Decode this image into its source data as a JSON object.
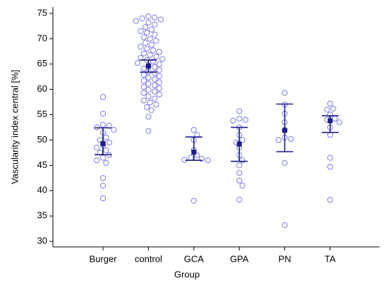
{
  "chart_data": {
    "type": "dotplot",
    "xlabel": "Group",
    "ylabel": "Vascularity index central [%]",
    "categories": [
      "Burger",
      "control",
      "GCA",
      "GPA",
      "PN",
      "TA"
    ],
    "points": [
      [
        58.5,
        55.2,
        53,
        52.8,
        52.5,
        52,
        51.5,
        50.5,
        50,
        49.5,
        49,
        48.5,
        48,
        47.5,
        47,
        46.5,
        46,
        45.5,
        42.5,
        41,
        38.5
      ],
      [
        74.4,
        74.2,
        74,
        73.8,
        73.5,
        73.2,
        72.8,
        72.3,
        71.8,
        71.5,
        71.2,
        70.8,
        70.3,
        70,
        69.6,
        69.2,
        68.8,
        68.4,
        68,
        67.7,
        67.4,
        67.1,
        66.8,
        66.5,
        66.2,
        66,
        65.8,
        65.5,
        65.2,
        65,
        64.7,
        64.4,
        64.1,
        63.8,
        63.5,
        63.2,
        62.9,
        62.6,
        62.3,
        62,
        61.7,
        61.4,
        61.1,
        60.8,
        60.5,
        60.2,
        59.9,
        59.6,
        59.3,
        59,
        58.6,
        58.2,
        57.8,
        57.4,
        57,
        56.5,
        55.9,
        54.6,
        51.8
      ],
      [
        52,
        51,
        50,
        48,
        47,
        46.5,
        46.3,
        46.1,
        46,
        38
      ],
      [
        55.7,
        54.2,
        54,
        53.8,
        52.5,
        51,
        50,
        49.5,
        48.5,
        47,
        46,
        45,
        43.5,
        42,
        41,
        38.2
      ],
      [
        59.3,
        57,
        55.2,
        53.5,
        52,
        50.5,
        50.2,
        50,
        45.5,
        33.2
      ],
      [
        57.2,
        56.2,
        56,
        55,
        54.2,
        54,
        53.5,
        52.5,
        51,
        46.5,
        44.7,
        38.2
      ]
    ],
    "means": [
      49.3,
      64.6,
      47.6,
      49.2,
      51.9,
      53.8
    ],
    "ci_low": [
      47.1,
      63.4,
      46,
      45.8,
      47.7,
      51.5
    ],
    "ci_high": [
      52.4,
      65.8,
      50.6,
      52.5,
      57.1,
      54.8
    ],
    "point_color": "#7b7be0",
    "mean_color": "#1c1c8a",
    "ylim": [
      28.9,
      76.25
    ],
    "yticks": [
      30,
      35,
      40,
      45,
      50,
      55,
      60,
      65,
      70,
      75
    ]
  }
}
